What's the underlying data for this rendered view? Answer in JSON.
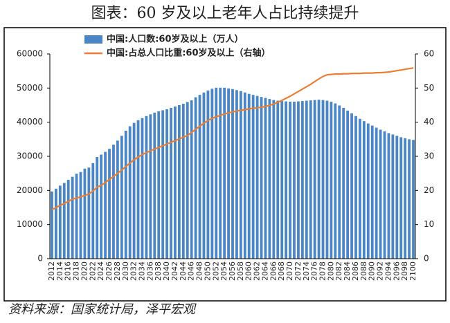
{
  "chart_data": {
    "type": "bar-line",
    "title": "图表：60 岁及以上老年人占比持续提升",
    "source": "资料来源：国家统计局，泽平宏观",
    "categories": [
      "2012",
      null,
      "2014",
      null,
      "2016",
      null,
      "2018",
      null,
      "2020",
      null,
      "2022",
      null,
      "2024",
      null,
      "2026",
      null,
      "2028",
      null,
      "2030",
      null,
      "2032",
      null,
      "2034",
      null,
      "2036",
      null,
      "2038",
      null,
      "2040",
      null,
      "2042",
      null,
      "2044",
      null,
      "2046",
      null,
      "2048",
      null,
      "2050",
      null,
      "2052",
      null,
      "2054",
      null,
      "2056",
      null,
      "2058",
      null,
      "2060",
      null,
      "2062",
      null,
      "2064",
      null,
      "2066",
      null,
      "2068",
      null,
      "2070",
      null,
      "2072",
      null,
      "2074",
      null,
      "2076",
      null,
      "2078",
      null,
      "2080",
      null,
      "2082",
      null,
      "2084",
      null,
      "2086",
      null,
      "2088",
      null,
      "2090",
      null,
      "2092",
      null,
      "2094",
      null,
      "2096",
      null,
      "2098",
      null,
      "2100"
    ],
    "series": [
      {
        "name": "中国:人口数:60岁及以上（万人）",
        "type": "bar",
        "color": "#4a86c5",
        "values": [
          19700,
          20500,
          21400,
          22200,
          23100,
          24000,
          24900,
          25400,
          26400,
          26700,
          28000,
          29800,
          30500,
          31300,
          32200,
          33400,
          34600,
          36000,
          37500,
          38800,
          39800,
          40600,
          41200,
          41800,
          42300,
          42800,
          43200,
          43500,
          43800,
          44200,
          44600,
          45000,
          45400,
          45900,
          46400,
          47300,
          48000,
          48700,
          49300,
          49800,
          50100,
          50100,
          50100,
          49900,
          49700,
          49400,
          49100,
          48700,
          48300,
          48000,
          47700,
          47400,
          47100,
          46800,
          46500,
          46300,
          46200,
          46100,
          46000,
          46000,
          46100,
          46200,
          46300,
          46400,
          46500,
          46600,
          46500,
          46300,
          46000,
          45500,
          44900,
          44200,
          43400,
          42600,
          41800,
          41000,
          40300,
          39600,
          39000,
          38400,
          37800,
          37300,
          36800,
          36400,
          36000,
          35600,
          35300,
          35000,
          34800
        ]
      },
      {
        "name": "中国:占总人口比重:60岁及以上（右轴）",
        "type": "line",
        "axis": "y2",
        "color": "#ed7d31",
        "values": [
          14.3,
          15.0,
          15.6,
          16.2,
          16.8,
          17.4,
          17.8,
          18.1,
          18.5,
          19.0,
          19.8,
          21.0,
          21.5,
          22.3,
          23.2,
          24.1,
          25.0,
          26.0,
          27.0,
          28.0,
          29.0,
          29.8,
          30.5,
          31.1,
          31.6,
          32.1,
          32.6,
          33.1,
          33.6,
          34.1,
          34.6,
          35.1,
          35.6,
          36.1,
          37.0,
          37.9,
          38.8,
          39.7,
          40.5,
          41.1,
          41.6,
          42.0,
          42.4,
          42.7,
          43.0,
          43.3,
          43.5,
          43.7,
          43.9,
          44.1,
          44.2,
          44.4,
          44.6,
          44.9,
          45.3,
          45.8,
          46.4,
          47.0,
          47.6,
          48.3,
          49.0,
          49.7,
          50.4,
          51.1,
          51.9,
          52.7,
          53.4,
          53.9,
          54.0,
          54.1,
          54.1,
          54.2,
          54.2,
          54.3,
          54.3,
          54.3,
          54.4,
          54.4,
          54.4,
          54.5,
          54.5,
          54.6,
          54.7,
          54.9,
          55.1,
          55.3,
          55.5,
          55.7,
          55.9
        ]
      }
    ],
    "ylim": [
      0,
      60000
    ],
    "yticks": [
      0,
      10000,
      20000,
      30000,
      40000,
      50000,
      60000
    ],
    "y2lim": [
      0,
      60
    ],
    "y2ticks": [
      0,
      10,
      20,
      30,
      40,
      50,
      60
    ],
    "legend": "upper left"
  }
}
